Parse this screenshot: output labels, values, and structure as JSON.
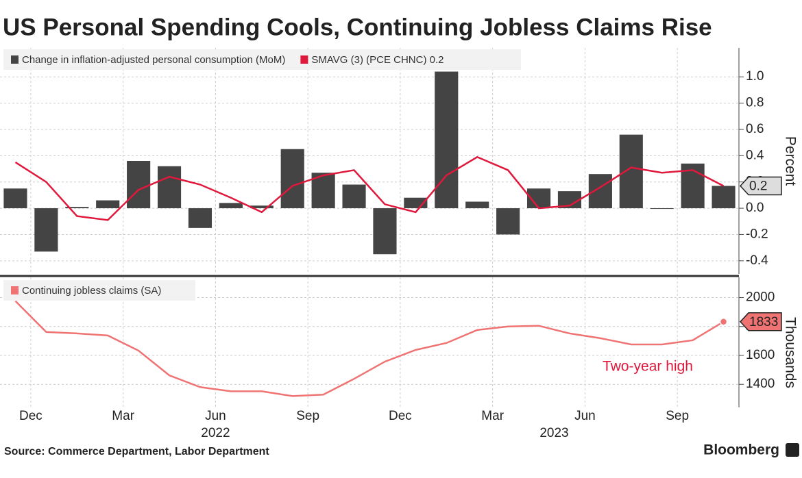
{
  "title": "US Personal Spending Cools, Continuing Jobless Claims Rise",
  "source": "Source: Commerce Department, Labor Department",
  "brand": "Bloomberg",
  "chart_data": [
    {
      "type": "bar",
      "categories": [
        null,
        "Dec",
        null,
        null,
        "Mar",
        null,
        null,
        "Jun",
        null,
        null,
        "Sep",
        null,
        null,
        "Dec",
        null,
        null,
        "Mar",
        null,
        null,
        "Jun",
        null,
        null,
        "Sep",
        null
      ],
      "x_group_labels": [
        "2022",
        "2023"
      ],
      "y_label": "Percent",
      "series": [
        {
          "name": "Change in inflation-adjusted personal consumption (MoM)",
          "type": "bar",
          "color": "#444444",
          "values": [
            0.15,
            -0.33,
            0.01,
            0.06,
            0.36,
            0.32,
            -0.15,
            0.04,
            0.02,
            0.45,
            0.27,
            0.18,
            -0.35,
            0.08,
            1.04,
            0.05,
            -0.2,
            0.15,
            0.13,
            0.26,
            0.56,
            0.0,
            0.34,
            0.17
          ]
        },
        {
          "name": "SMAVG (3) (PCE CHNC) 0.2",
          "type": "line",
          "color": "#e0183c",
          "values": [
            0.35,
            0.2,
            -0.06,
            -0.09,
            0.14,
            0.24,
            0.18,
            0.08,
            -0.03,
            0.17,
            0.25,
            0.29,
            0.03,
            -0.03,
            0.25,
            0.39,
            0.29,
            0.0,
            0.02,
            0.16,
            0.31,
            0.27,
            0.29,
            0.17
          ],
          "value_labels": [
            null,
            null,
            null,
            null,
            null,
            null,
            null,
            null,
            null,
            null,
            null,
            null,
            null,
            null,
            null,
            null,
            null,
            null,
            null,
            null,
            null,
            null,
            null,
            "0.2"
          ]
        }
      ],
      "ylim": [
        -0.5,
        1.22
      ],
      "yticks": [
        -0.4,
        -0.2,
        {
          "value": 0,
          "label": "0.0"
        },
        0.2,
        0.4,
        0.6,
        0.8,
        {
          "value": 1,
          "label": "1.0"
        }
      ],
      "grid": true
    },
    {
      "type": "line",
      "y_label": "Thousands",
      "annotation": "Two-year high",
      "series": [
        {
          "name": "Continuing jobless claims (SA)",
          "type": "line",
          "color": "#f07373",
          "values": [
            1976,
            1762,
            1752,
            1738,
            1633,
            1462,
            1381,
            1352,
            1352,
            1319,
            1329,
            1438,
            1557,
            1638,
            1686,
            1776,
            1800,
            1805,
            1752,
            1719,
            1676,
            1676,
            1705,
            1833
          ],
          "value_labels": [
            null,
            null,
            null,
            null,
            null,
            null,
            null,
            null,
            null,
            null,
            null,
            null,
            null,
            null,
            null,
            null,
            null,
            null,
            null,
            null,
            null,
            null,
            null,
            "1833"
          ]
        }
      ],
      "ylim": [
        1240,
        2140
      ],
      "yticks": [
        1400,
        1600,
        1800,
        2000
      ],
      "grid": true
    }
  ]
}
